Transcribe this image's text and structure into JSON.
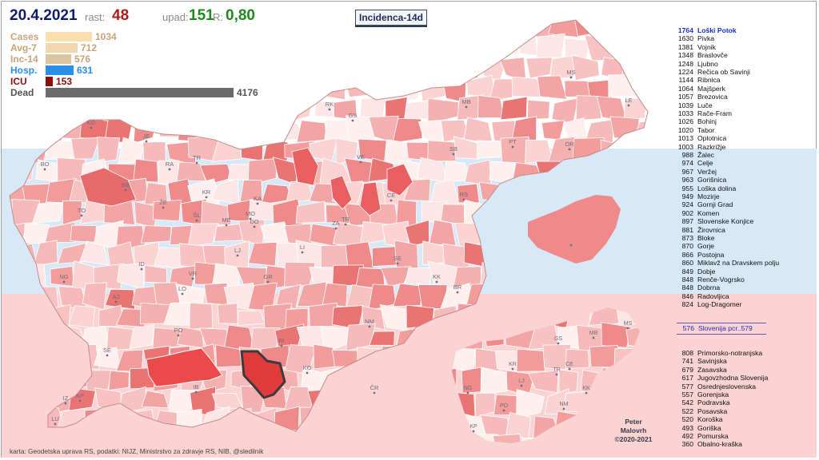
{
  "header": {
    "date": "20.4.2021",
    "rast_label": "rast:",
    "rast_value": "48",
    "upad_label": "upad:",
    "upad_value": "151",
    "r_label": "R:",
    "r_value": "0,80",
    "map_title": "Incidenca-14d"
  },
  "stats": [
    {
      "label": "Cases",
      "value": "1034",
      "color": "#f9dfae",
      "label_color": "#c9a37a",
      "fraction": 0.248
    },
    {
      "label": "Avg-7",
      "value": "712",
      "color": "#f2d6b0",
      "label_color": "#c9a37a",
      "fraction": 0.171
    },
    {
      "label": "Inc-14",
      "value": "576",
      "color": "#dcc3a2",
      "label_color": "#c9a37a",
      "fraction": 0.138
    },
    {
      "label": "Hosp.",
      "value": "631",
      "color": "#2a8fe6",
      "label_color": "#2a8fe6",
      "fraction": 0.151
    },
    {
      "label": "ICU",
      "value": "153",
      "color": "#8b0d0d",
      "label_color": "#8b0d0d",
      "fraction": 0.037
    },
    {
      "label": "Dead",
      "value": "4176",
      "color": "#6b6b6b",
      "label_color": "#555555",
      "fraction": 1.0
    }
  ],
  "map": {
    "bands": {
      "top": "#ffffff",
      "middle": "#d7e9f7",
      "bottom": "#fbd3d3"
    },
    "main_labels": [
      "KG",
      "JE",
      "BO",
      "RA",
      "TR",
      "BB",
      "KR",
      "KA",
      "ŽE",
      "VE",
      "SB",
      "PT",
      "OR",
      "MS",
      "LE",
      "RK",
      "GS",
      "MB",
      "TO",
      "ŠL",
      "ME",
      "MO",
      "DO",
      "TR",
      "ZA",
      "CE",
      "RS",
      "LJ",
      "LI",
      "SE",
      "KK",
      "BR",
      "ID",
      "NG",
      "AJ",
      "VR",
      "LO",
      "GR",
      "NM",
      "PO",
      "RI",
      "KO",
      "SE",
      "IB",
      "ČR",
      "IZ",
      "KP",
      "LU"
    ],
    "mini_labels": [
      "MS",
      "GS",
      "MB",
      "KR",
      "CE",
      "TR",
      "LJ",
      "KK",
      "NG",
      "PO",
      "NM",
      "KP"
    ]
  },
  "top_list": [
    {
      "value": "1764",
      "name": "Loški Potok"
    },
    {
      "value": "1630",
      "name": "Pivka"
    },
    {
      "value": "1381",
      "name": "Vojnik"
    },
    {
      "value": "1348",
      "name": "Braslovče"
    },
    {
      "value": "1248",
      "name": "Ljubno"
    },
    {
      "value": "1224",
      "name": "Rečica ob Savinji"
    },
    {
      "value": "1144",
      "name": "Ribnica"
    },
    {
      "value": "1064",
      "name": "Majšperk"
    },
    {
      "value": "1057",
      "name": "Brezovica"
    },
    {
      "value": "1039",
      "name": "Luče"
    },
    {
      "value": "1033",
      "name": "Rače-Fram"
    },
    {
      "value": "1026",
      "name": "Bohinj"
    },
    {
      "value": "1020",
      "name": "Tabor"
    },
    {
      "value": "1013",
      "name": "Oplotnica"
    },
    {
      "value": "1003",
      "name": "Razkrižje"
    },
    {
      "value": "988",
      "name": "Žalec"
    },
    {
      "value": "974",
      "name": "Celje"
    },
    {
      "value": "967",
      "name": "Veržej"
    },
    {
      "value": "963",
      "name": "Gorišnica"
    },
    {
      "value": "955",
      "name": "Loška dolina"
    },
    {
      "value": "949",
      "name": "Mozirje"
    },
    {
      "value": "924",
      "name": "Gornji Grad"
    },
    {
      "value": "902",
      "name": "Komen"
    },
    {
      "value": "897",
      "name": "Slovenske Konjice"
    },
    {
      "value": "881",
      "name": "Žirovnica"
    },
    {
      "value": "873",
      "name": "Bloke"
    },
    {
      "value": "870",
      "name": "Gorje"
    },
    {
      "value": "866",
      "name": "Postojna"
    },
    {
      "value": "860",
      "name": "Miklavž na Dravskem polju"
    },
    {
      "value": "849",
      "name": "Dobje"
    },
    {
      "value": "848",
      "name": "Renče-Vogrsko"
    },
    {
      "value": "848",
      "name": "Dobrna"
    },
    {
      "value": "846",
      "name": "Radovljica"
    },
    {
      "value": "824",
      "name": "Log-Dragomer"
    }
  ],
  "summary": {
    "value": "576",
    "label": "Slovenija pcr..579"
  },
  "regions": [
    {
      "value": "808",
      "name": "Primorsko-notranjska"
    },
    {
      "value": "741",
      "name": "Savinjska"
    },
    {
      "value": "679",
      "name": "Zasavska"
    },
    {
      "value": "617",
      "name": "Jugovzhodna Slovenija"
    },
    {
      "value": "577",
      "name": "Osrednjeslovenska"
    },
    {
      "value": "557",
      "name": "Gorenjska"
    },
    {
      "value": "542",
      "name": "Podravska"
    },
    {
      "value": "522",
      "name": "Posavska"
    },
    {
      "value": "520",
      "name": "Koroška"
    },
    {
      "value": "493",
      "name": "Goriška"
    },
    {
      "value": "492",
      "name": "Pomurska"
    },
    {
      "value": "360",
      "name": "Obalno-kraška"
    }
  ],
  "credits": {
    "line1": "Peter",
    "line2": "Malovrh",
    "line3": "©2020-2021"
  },
  "source": "karta: Geodetska uprava RS,  podatki: NIJZ, Ministrstvo za zdravje RS, NIB, @sledilnik"
}
